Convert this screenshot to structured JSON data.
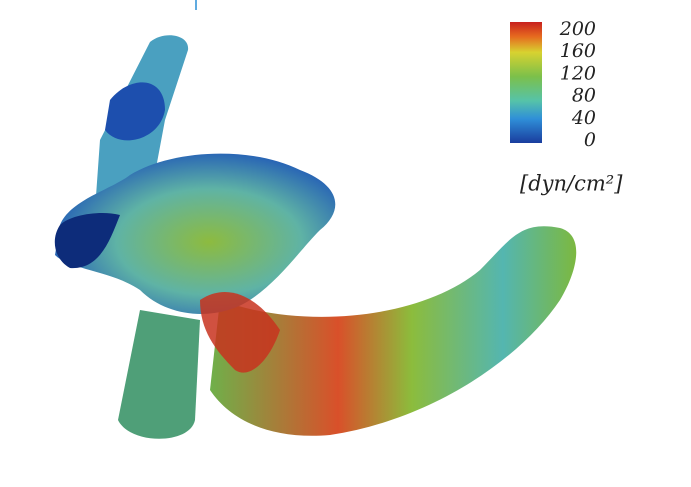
{
  "colorbar": {
    "ticks": [
      200,
      160,
      120,
      80,
      40,
      0
    ],
    "unit": "[dyn/cm²]"
  }
}
